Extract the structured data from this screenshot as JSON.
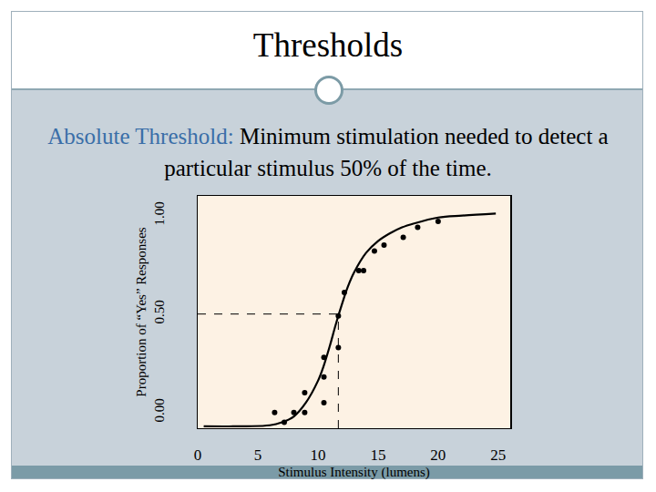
{
  "chart_data": {
    "type": "scatter",
    "title": "Thresholds",
    "subtitle": "Absolute Threshold: Minimum stimulation needed to detect a particular stimulus 50% of the time.",
    "x_label": "Stimulus Intensity (lumens)",
    "y_label": "Proportion of “Yes” Responses",
    "series": [
      {
        "type": "scatter",
        "marker": "circle",
        "color": "#000000",
        "x": [
          6.4,
          7.2,
          8.0,
          8.9,
          8.9,
          10.5,
          10.5,
          10.5,
          11.7,
          11.7,
          12.2,
          13.4,
          13.8,
          14.7,
          15.5,
          17.1,
          18.3,
          20.0
        ],
        "values": [
          0.0,
          -0.05,
          0.0,
          0.1,
          0.0,
          0.05,
          0.18,
          0.28,
          0.33,
          0.49,
          0.61,
          0.72,
          0.72,
          0.82,
          0.85,
          0.89,
          0.94,
          0.97
        ]
      },
      {
        "type": "line",
        "line_style": "solid",
        "color": "#000000",
        "x": [
          0.5,
          4,
          6,
          7,
          8,
          9,
          10,
          10.5,
          11,
          11.5,
          12,
          12.5,
          13,
          14,
          15,
          16,
          17,
          18,
          20,
          22,
          24.8
        ],
        "values": [
          -0.07,
          -0.07,
          -0.065,
          -0.05,
          -0.02,
          0.05,
          0.16,
          0.24,
          0.34,
          0.45,
          0.55,
          0.64,
          0.71,
          0.81,
          0.87,
          0.91,
          0.94,
          0.96,
          0.99,
          1.0,
          1.01
        ]
      }
    ],
    "threshold": {
      "x": 11.7,
      "y": 0.5
    },
    "xlim": [
      0,
      26
    ],
    "xticks": [
      0,
      5,
      10,
      15,
      20,
      25
    ],
    "ylim": [
      -0.08,
      1.1
    ],
    "yticks": [
      {
        "value": 0,
        "label": "0.00"
      },
      {
        "value": 0.5,
        "label": "0.50"
      },
      {
        "value": 1,
        "label": "1.00"
      }
    ],
    "grid": false
  }
}
